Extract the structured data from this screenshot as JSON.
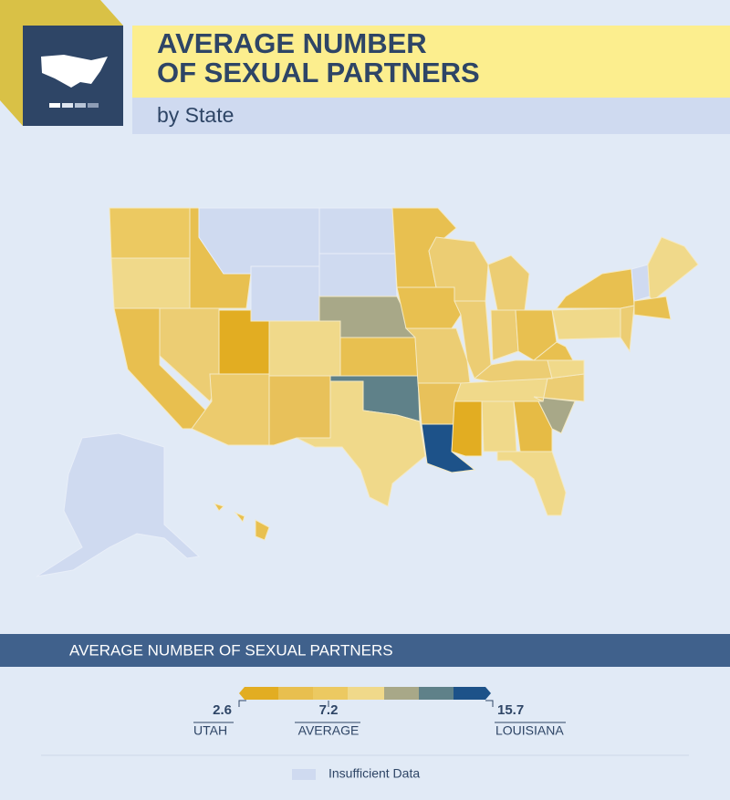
{
  "header": {
    "title_lines": [
      "AVERAGE NUMBER",
      "OF SEXUAL PARTNERS"
    ],
    "subtitle": "by State"
  },
  "legend": {
    "title": "AVERAGE NUMBER OF SEXUAL PARTNERS",
    "min": {
      "value": "2.6",
      "label": "UTAH"
    },
    "average": {
      "value": "7.2",
      "label": "AVERAGE"
    },
    "max": {
      "value": "15.7",
      "label": "LOUISIANA"
    },
    "insufficient": "Insufficient Data"
  }
}
